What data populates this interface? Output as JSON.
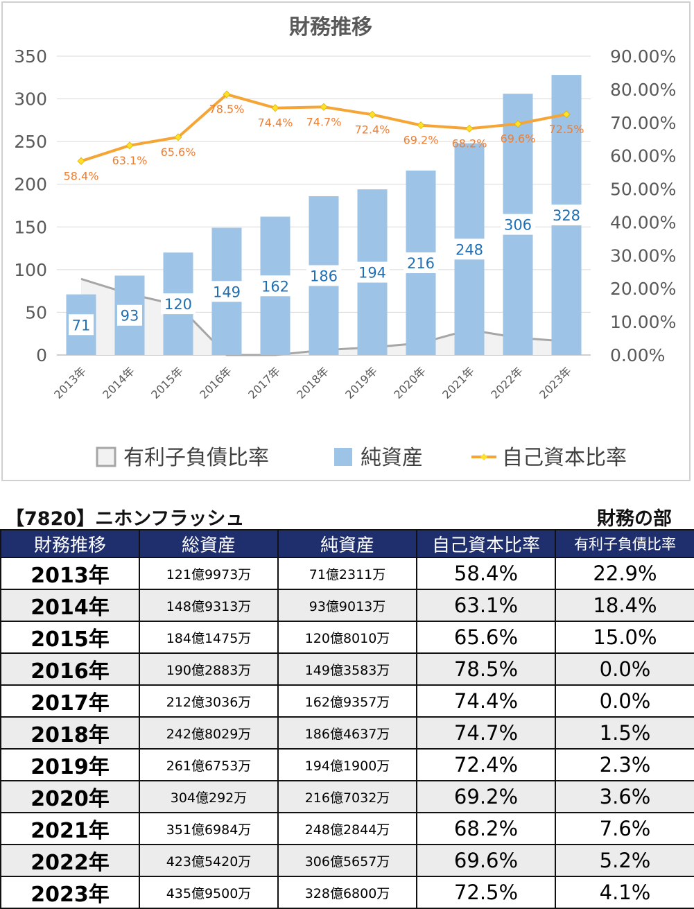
{
  "chart_data": {
    "type": "bar+line+area",
    "title": "財務推移",
    "categories": [
      "2013年",
      "2014年",
      "2015年",
      "2016年",
      "2017年",
      "2018年",
      "2019年",
      "2020年",
      "2021年",
      "2022年",
      "2023年"
    ],
    "series": [
      {
        "name": "有利子負債比率",
        "kind": "area",
        "axis": "right",
        "values": [
          22.9,
          18.4,
          15.0,
          0.0,
          0.0,
          1.5,
          2.3,
          3.6,
          7.6,
          5.2,
          4.1
        ],
        "color": "#a6a6a6"
      },
      {
        "name": "純資産",
        "kind": "bar",
        "axis": "left",
        "values": [
          71,
          93,
          120,
          149,
          162,
          186,
          194,
          216,
          248,
          306,
          328
        ],
        "labels": [
          "71",
          "93",
          "120",
          "149",
          "162",
          "186",
          "194",
          "216",
          "248",
          "306",
          "328"
        ],
        "color": "#9dc3e6",
        "label_color": "#1f6fb5"
      },
      {
        "name": "自己資本比率",
        "kind": "line",
        "axis": "right",
        "values": [
          58.4,
          63.1,
          65.6,
          78.5,
          74.4,
          74.7,
          72.4,
          69.2,
          68.2,
          69.6,
          72.5
        ],
        "labels": [
          "58.4%",
          "63.1%",
          "65.6%",
          "78.5%",
          "74.4%",
          "74.7%",
          "72.4%",
          "69.2%",
          "68.2%",
          "69.6%",
          "72.5%"
        ],
        "color": "#f5a535",
        "marker_color": "#ffe02a",
        "label_color": "#ed7d31"
      }
    ],
    "y_left": {
      "ylim": [
        0,
        350
      ],
      "ticks": [
        "0",
        "50",
        "100",
        "150",
        "200",
        "250",
        "300",
        "350"
      ]
    },
    "y_right": {
      "ylim": [
        0,
        90
      ],
      "ticks": [
        "0.00%",
        "10.00%",
        "20.00%",
        "30.00%",
        "40.00%",
        "50.00%",
        "60.00%",
        "70.00%",
        "80.00%",
        "90.00%"
      ]
    },
    "grid": true,
    "legend": "bottom",
    "legend_labels": [
      "有利子負債比率",
      "純資産",
      "自己資本比率"
    ]
  },
  "header": {
    "company": "【7820】ニホンフラッシュ",
    "section": "財務の部"
  },
  "table": {
    "columns": [
      "財務推移",
      "総資産",
      "純資産",
      "自己資本比率",
      "有利子負債比率"
    ],
    "rows": [
      {
        "year": "2013年",
        "total": "121億9973万",
        "net": "71億2311万",
        "equity": "58.4%",
        "debt": "22.9%"
      },
      {
        "year": "2014年",
        "total": "148億9313万",
        "net": "93億9013万",
        "equity": "63.1%",
        "debt": "18.4%"
      },
      {
        "year": "2015年",
        "total": "184億1475万",
        "net": "120億8010万",
        "equity": "65.6%",
        "debt": "15.0%"
      },
      {
        "year": "2016年",
        "total": "190億2883万",
        "net": "149億3583万",
        "equity": "78.5%",
        "debt": "0.0%"
      },
      {
        "year": "2017年",
        "total": "212億3036万",
        "net": "162億9357万",
        "equity": "74.4%",
        "debt": "0.0%"
      },
      {
        "year": "2018年",
        "total": "242億8029万",
        "net": "186億4637万",
        "equity": "74.7%",
        "debt": "1.5%"
      },
      {
        "year": "2019年",
        "total": "261億6753万",
        "net": "194億1900万",
        "equity": "72.4%",
        "debt": "2.3%"
      },
      {
        "year": "2020年",
        "total": "304億292万",
        "net": "216億7032万",
        "equity": "69.2%",
        "debt": "3.6%"
      },
      {
        "year": "2021年",
        "total": "351億6984万",
        "net": "248億2844万",
        "equity": "68.2%",
        "debt": "7.6%"
      },
      {
        "year": "2022年",
        "total": "423億5420万",
        "net": "306億5657万",
        "equity": "69.6%",
        "debt": "5.2%"
      },
      {
        "year": "2023年",
        "total": "435億9500万",
        "net": "328億6800万",
        "equity": "72.5%",
        "debt": "4.1%"
      }
    ]
  }
}
